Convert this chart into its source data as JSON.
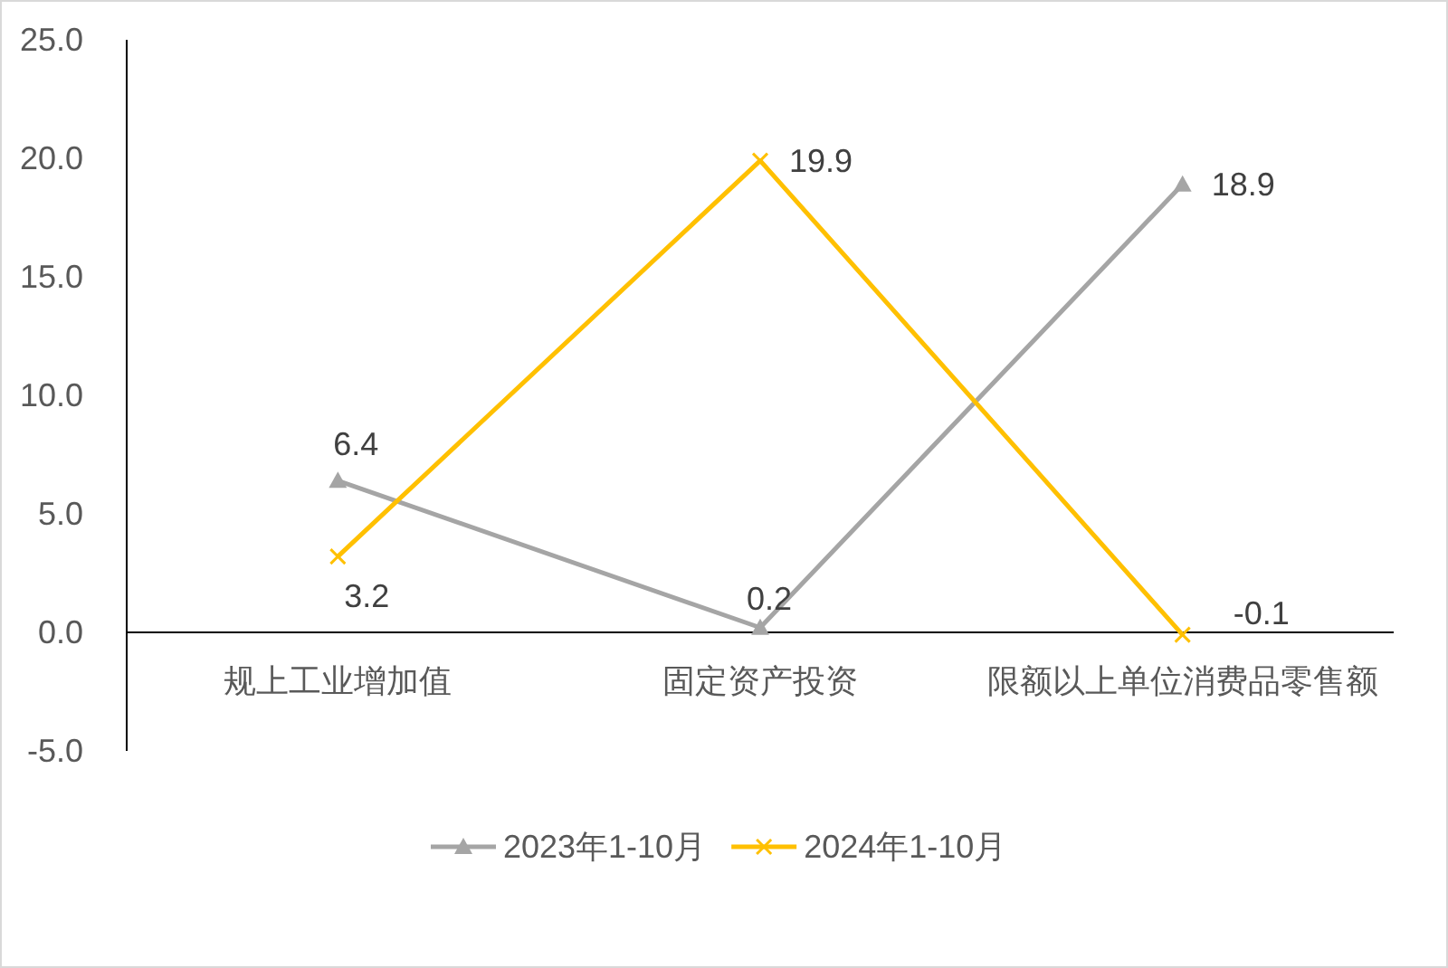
{
  "chart_data": {
    "type": "line",
    "categories": [
      "规上工业增加值",
      "固定资产投资",
      "限额以上单位消费品零售额"
    ],
    "series": [
      {
        "name": "2023年1-10月",
        "color": "#a5a5a5",
        "marker": "triangle",
        "values": [
          6.4,
          0.2,
          18.9
        ]
      },
      {
        "name": "2024年1-10月",
        "color": "#ffc000",
        "marker": "cross",
        "values": [
          3.2,
          19.9,
          -0.1
        ]
      }
    ],
    "ylim": [
      -5,
      25
    ],
    "yticks": [
      {
        "value": -5,
        "label": "-5.0"
      },
      {
        "value": 0,
        "label": "0.0"
      },
      {
        "value": 5,
        "label": "5.0"
      },
      {
        "value": 10,
        "label": "10.0"
      },
      {
        "value": 15,
        "label": "15.0"
      },
      {
        "value": 20,
        "label": "20.0"
      },
      {
        "value": 25,
        "label": "25.0"
      }
    ],
    "data_labels": true,
    "grid": false,
    "legend": "bottom"
  }
}
